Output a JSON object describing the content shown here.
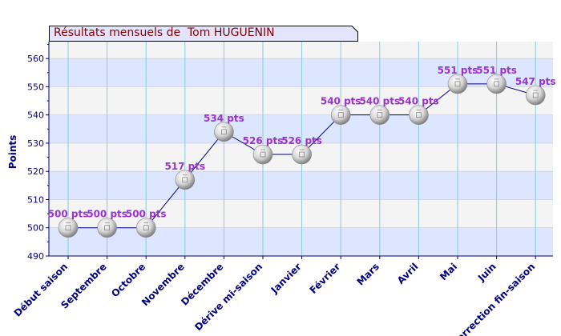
{
  "title": "Résultats mensuels de  Tom HUGUENIN",
  "colors": {
    "title_bg": "#e4e4ff",
    "title_text": "#800000",
    "band_blue": "#dde6ff",
    "band_grey": "#f4f4f4",
    "axis": "#000080",
    "grid": "#88ccdd",
    "value_label": "#9933cc",
    "line": "#000080"
  },
  "chart_data": {
    "type": "line",
    "ylabel": "Points",
    "xlabel": "",
    "ylim": [
      490,
      566
    ],
    "yticks": [
      490,
      500,
      510,
      520,
      530,
      540,
      550,
      560
    ],
    "grid": true,
    "legend": "none",
    "categories": [
      "Début saison",
      "Septembre",
      "Octobre",
      "Novembre",
      "Décembre",
      "Dérive mi-saison",
      "Janvier",
      "Février",
      "Mars",
      "Avril",
      "Mai",
      "Juin",
      "Correction fin-saison"
    ],
    "values": [
      500,
      500,
      500,
      517,
      534,
      526,
      526,
      540,
      540,
      540,
      551,
      551,
      547
    ],
    "value_labels": [
      "500 pts",
      "500 pts",
      "500 pts",
      "517 pts",
      "534 pts",
      "526 pts",
      "526 pts",
      "540 pts",
      "540 pts",
      "540 pts",
      "551 pts",
      "551 pts",
      "547 pts"
    ]
  }
}
